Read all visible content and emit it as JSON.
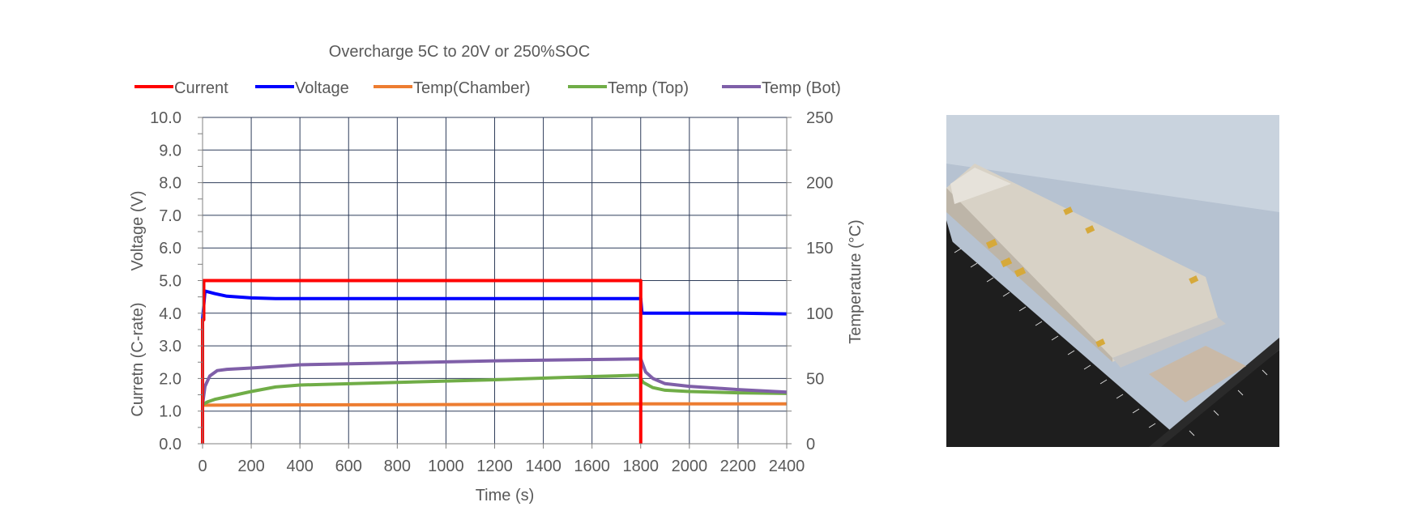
{
  "chart_data": {
    "type": "line",
    "title": "Overcharge 5C to 20V or 250%SOC",
    "xlabel": "Time (s)",
    "ylabel_left_top": "Voltage (V)",
    "ylabel_left_bottom": "Curretn (C-rate)",
    "ylabel_right": "Temperature (°C)",
    "xlim": [
      0,
      2400
    ],
    "ylim_left": [
      0,
      10
    ],
    "ylim_right": [
      0,
      250
    ],
    "x_ticks": [
      "0",
      "200",
      "400",
      "600",
      "800",
      "1000",
      "1200",
      "1400",
      "1600",
      "1800",
      "2000",
      "2200",
      "2400"
    ],
    "y_left_ticks": [
      "0.0",
      "1.0",
      "2.0",
      "3.0",
      "4.0",
      "5.0",
      "6.0",
      "7.0",
      "8.0",
      "9.0",
      "10.0"
    ],
    "y_right_ticks": [
      "0",
      "50",
      "100",
      "150",
      "200",
      "250"
    ],
    "grid": true,
    "legend_position": "top",
    "series": [
      {
        "name": "Current",
        "axis": "left",
        "color": "#ff0000",
        "x": [
          0,
          0,
          5,
          5,
          1795,
          1800,
          1800
        ],
        "y": [
          0,
          3.8,
          3.8,
          5.0,
          5.0,
          5.0,
          0
        ]
      },
      {
        "name": "Voltage",
        "axis": "left",
        "color": "#0000ff",
        "x": [
          0,
          0,
          10,
          50,
          100,
          200,
          300,
          1000,
          1795,
          1800,
          1805,
          1900,
          2200,
          2400
        ],
        "y": [
          1.3,
          3.8,
          4.68,
          4.6,
          4.52,
          4.47,
          4.45,
          4.45,
          4.45,
          4.45,
          4.0,
          4.0,
          4.0,
          3.98
        ]
      },
      {
        "name": "Temp(Chamber)",
        "axis": "right",
        "color": "#ed7d31",
        "x": [
          0,
          400,
          1000,
          1800,
          2400
        ],
        "y": [
          29.5,
          29.8,
          30,
          30.5,
          30.5
        ]
      },
      {
        "name": "Temp (Top)",
        "axis": "right",
        "color": "#70ad47",
        "x": [
          0,
          20,
          50,
          100,
          200,
          300,
          400,
          800,
          1200,
          1600,
          1790,
          1810,
          1850,
          1900,
          2000,
          2200,
          2400
        ],
        "y": [
          30,
          32,
          34,
          36,
          40,
          43.5,
          45,
          47,
          49,
          51.5,
          52.5,
          47,
          43,
          41,
          40,
          39,
          38.5
        ]
      },
      {
        "name": "Temp (Bot)",
        "axis": "right",
        "color": "#7f5fa8",
        "x": [
          0,
          10,
          30,
          60,
          100,
          200,
          400,
          800,
          1200,
          1600,
          1800,
          1820,
          1850,
          1900,
          2000,
          2200,
          2400
        ],
        "y": [
          30,
          44,
          52,
          56,
          57,
          58,
          60.5,
          62,
          63.5,
          64.5,
          65,
          55,
          50,
          46,
          44,
          41.5,
          39.5
        ]
      }
    ]
  },
  "photo": {
    "description_icon": "battery-pouch-cell-photo-icon"
  }
}
